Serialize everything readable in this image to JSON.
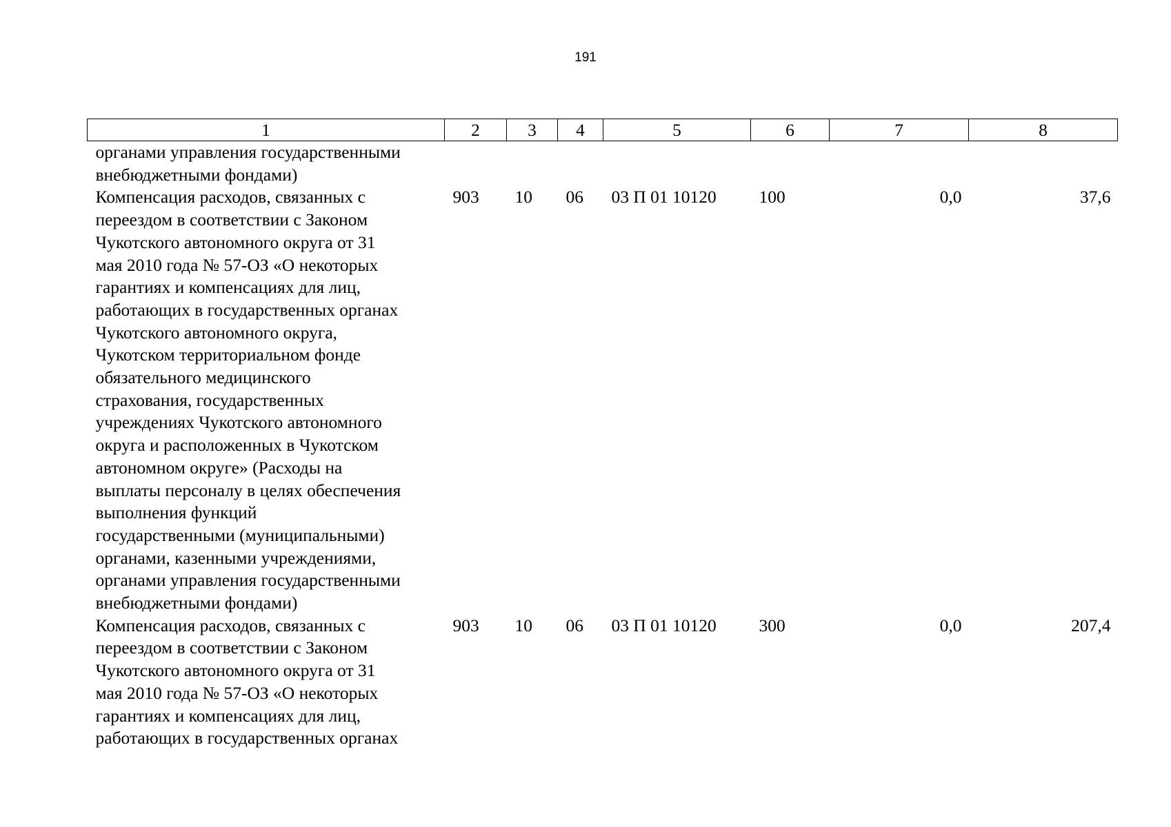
{
  "page_number": "191",
  "table": {
    "headers": [
      "1",
      "2",
      "3",
      "4",
      "5",
      "6",
      "7",
      "8"
    ],
    "rows": [
      {
        "name_lines": [
          "органами управления государственными",
          "внебюджетными фондами)"
        ],
        "c2": "",
        "c3": "",
        "c4": "",
        "c5": "",
        "c6": "",
        "c7": "",
        "c8": ""
      },
      {
        "name_lines": [
          "Компенсация расходов, связанных с",
          "переездом в соответствии с Законом",
          "Чукотского автономного округа от 31",
          "мая 2010 года № 57-ОЗ «О некоторых",
          "гарантиях и компенсациях для лиц,",
          "работающих в государственных органах",
          "Чукотского автономного округа,",
          "Чукотском территориальном фонде",
          "обязательного медицинского",
          "страхования, государственных",
          "учреждениях Чукотского автономного",
          "округа и расположенных в Чукотском",
          "автономном округе» (Расходы на",
          "выплаты персоналу в целях обеспечения",
          "выполнения функций",
          "государственными (муниципальными)",
          "органами, казенными учреждениями,",
          "органами управления государственными",
          "внебюджетными фондами)"
        ],
        "c2": "903",
        "c3": "10",
        "c4": "06",
        "c5": "03 П 01 10120",
        "c6": "100",
        "c7": "0,0",
        "c8": "37,6"
      },
      {
        "name_lines": [
          "Компенсация расходов, связанных с",
          "переездом в соответствии с Законом",
          "Чукотского автономного округа от 31",
          "мая 2010 года № 57-ОЗ «О некоторых",
          "гарантиях и компенсациях для лиц,",
          "работающих в государственных органах"
        ],
        "c2": "903",
        "c3": "10",
        "c4": "06",
        "c5": "03 П 01 10120",
        "c6": "300",
        "c7": "0,0",
        "c8": "207,4"
      }
    ]
  }
}
